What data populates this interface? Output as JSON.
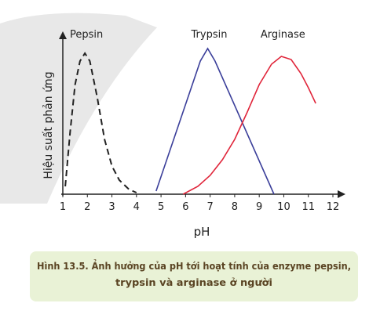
{
  "chart_data": {
    "type": "line",
    "y_label": "Hiệu suất phản ứng",
    "x_label": "pH",
    "xlim": [
      1,
      12
    ],
    "ylim": [
      0,
      100
    ],
    "xticks": [
      1,
      2,
      3,
      4,
      5,
      6,
      7,
      8,
      9,
      10,
      11,
      12
    ],
    "series": [
      {
        "name": "Pepsin",
        "color": "#222222",
        "dashed": true,
        "x": [
          1.1,
          1.3,
          1.5,
          1.7,
          1.9,
          2.1,
          2.4,
          2.7,
          3.0,
          3.3,
          3.7,
          4.0
        ],
        "values": [
          5,
          40,
          70,
          85,
          90,
          85,
          62,
          35,
          18,
          9,
          3,
          1
        ]
      },
      {
        "name": "Trypsin",
        "color": "#3b3f9a",
        "dashed": false,
        "x": [
          4.8,
          6.6,
          6.9,
          7.2,
          9.6
        ],
        "values": [
          2,
          85,
          93,
          85,
          0
        ]
      },
      {
        "name": "Arginase",
        "color": "#e0253a",
        "dashed": false,
        "x": [
          5.9,
          6.5,
          7.0,
          7.5,
          8.0,
          8.5,
          9.0,
          9.5,
          9.9,
          10.3,
          10.7,
          11.0,
          11.3
        ],
        "values": [
          0,
          5,
          12,
          22,
          35,
          52,
          70,
          83,
          88,
          86,
          77,
          68,
          58
        ]
      }
    ]
  },
  "caption": {
    "lines": [
      "Hình 13.5. Ảnh hưởng của pH tới hoạt tính của enzyme pepsin,",
      "trypsin và arginase ở người"
    ]
  }
}
